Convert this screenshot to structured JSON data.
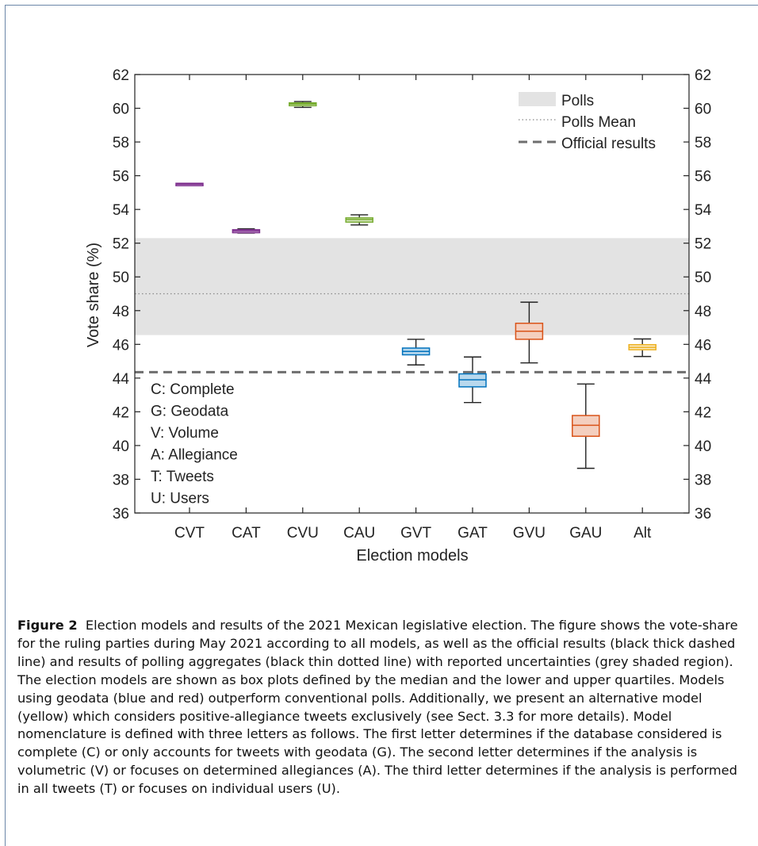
{
  "chart_data": {
    "type": "box",
    "xlabel": "Election models",
    "ylabel": "Vote share (%)",
    "ylim": [
      36,
      62
    ],
    "yticks": [
      36,
      38,
      40,
      42,
      44,
      46,
      48,
      50,
      52,
      54,
      56,
      58,
      60,
      62
    ],
    "right_axis": true,
    "grid": false,
    "categories": [
      "CVT",
      "CAT",
      "CVU",
      "CAU",
      "GVT",
      "GAT",
      "GVU",
      "GAU",
      "Alt"
    ],
    "boxes": [
      {
        "label": "CVT",
        "min": 55.45,
        "q1": 55.45,
        "median": 55.5,
        "q3": 55.55,
        "max": 55.55,
        "color": "#7e2f8e"
      },
      {
        "label": "CAT",
        "min": 52.6,
        "q1": 52.62,
        "median": 52.72,
        "q3": 52.8,
        "max": 52.85,
        "color": "#7e2f8e"
      },
      {
        "label": "CVU",
        "min": 60.05,
        "q1": 60.15,
        "median": 60.25,
        "q3": 60.32,
        "max": 60.4,
        "color": "#77ac30"
      },
      {
        "label": "CAU",
        "min": 53.08,
        "q1": 53.25,
        "median": 53.4,
        "q3": 53.5,
        "max": 53.68,
        "color": "#77ac30"
      },
      {
        "label": "GVT",
        "min": 44.78,
        "q1": 45.38,
        "median": 45.58,
        "q3": 45.78,
        "max": 46.3,
        "color": "#0072bd"
      },
      {
        "label": "GAT",
        "min": 42.55,
        "q1": 43.48,
        "median": 43.9,
        "q3": 44.25,
        "max": 45.25,
        "color": "#0072bd"
      },
      {
        "label": "GVU",
        "min": 44.9,
        "q1": 46.3,
        "median": 46.78,
        "q3": 47.25,
        "max": 48.5,
        "color": "#d95319"
      },
      {
        "label": "GAU",
        "min": 38.65,
        "q1": 40.55,
        "median": 41.2,
        "q3": 41.78,
        "max": 43.65,
        "color": "#d95319"
      },
      {
        "label": "Alt",
        "min": 45.28,
        "q1": 45.68,
        "median": 45.82,
        "q3": 45.98,
        "max": 46.32,
        "color": "#edb120"
      }
    ],
    "polls_band": [
      46.55,
      52.3
    ],
    "polls_mean": 49.0,
    "official_result": 44.35,
    "legend": {
      "position": "top-right",
      "entries": [
        "Polls",
        "Polls Mean",
        "Official results"
      ]
    },
    "annotation_lines": [
      "C: Complete",
      "G: Geodata",
      "V: Volume",
      "A: Allegiance",
      "T: Tweets",
      "U: Users"
    ]
  },
  "caption": {
    "label": "Figure 2",
    "text": "Election models and results of the 2021 Mexican legislative election. The figure shows the vote-share for the ruling parties during May 2021 according to all models, as well as the official results (black thick dashed line) and results of polling aggregates (black thin dotted line) with reported uncertainties (grey shaded region). The election models are shown as box plots defined by the median and the lower and upper quartiles. Models using geodata (blue and red) outperform conventional polls. Additionally, we present an alternative model (yellow) which considers positive-allegiance tweets exclusively (see Sect. 3.3 for more details). Model nomenclature is defined with three letters as follows. The first letter determines if the database considered is complete (C) or only accounts for tweets with geodata (G). The second letter determines if the analysis is volumetric (V) or focuses on determined allegiances (A). The third letter determines if the analysis is performed in all tweets (T) or focuses on individual users (U)."
  },
  "colors": {
    "polls_band": "#e3e3e3",
    "official_line": "#6e6e6e",
    "mean_line": "#888888"
  }
}
